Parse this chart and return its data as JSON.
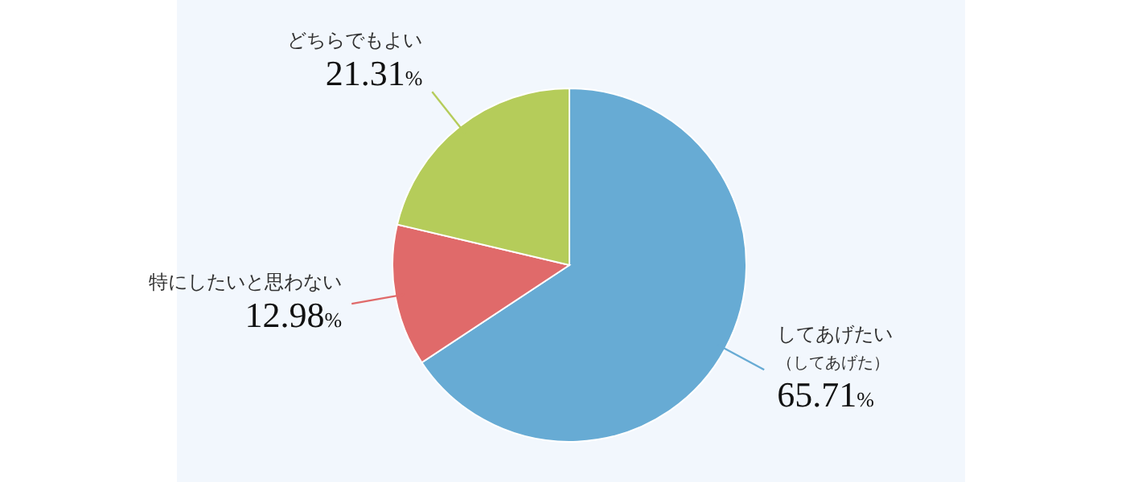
{
  "chart_data": {
    "type": "pie",
    "categories": [
      "してあげたい（してあげた）",
      "特にしたいと思わない",
      "どちらでもよい"
    ],
    "values": [
      65.71,
      12.98,
      21.31
    ],
    "value_labels": [
      "65.71%",
      "12.98%",
      "21.31%"
    ],
    "colors": [
      "#67abd4",
      "#e06a6a",
      "#b5cc5a"
    ]
  }
}
